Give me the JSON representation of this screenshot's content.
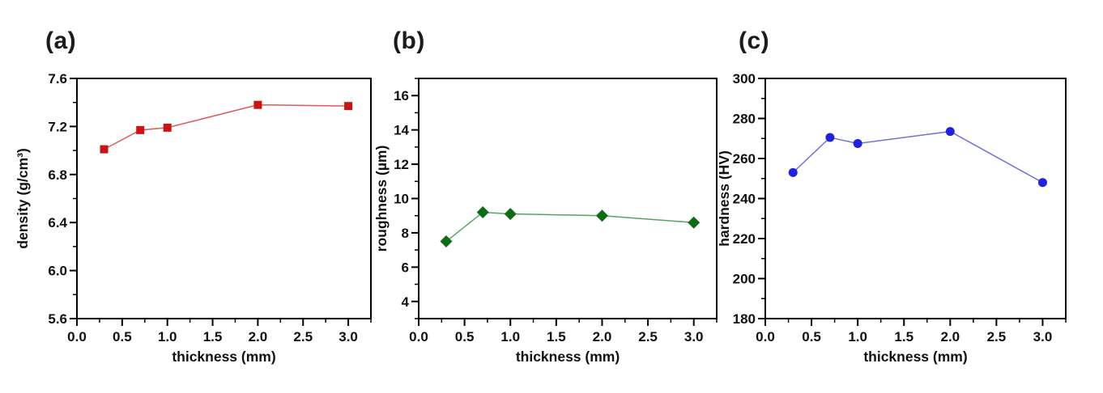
{
  "chart_data": [
    {
      "id": "a",
      "panel_label": "(a)",
      "type": "line",
      "xlabel": "thickness (mm)",
      "ylabel": "density (g/cm³)",
      "series": [
        {
          "name": "density",
          "x": [
            0.3,
            0.7,
            1.0,
            2.0,
            3.0
          ],
          "y": [
            7.01,
            7.17,
            7.19,
            7.38,
            7.37
          ]
        }
      ],
      "marker": "square",
      "marker_color": "#c81415",
      "line_color": "#e25858",
      "xlim": [
        0,
        3.25
      ],
      "ylim": [
        5.6,
        7.6
      ],
      "xtick_values": [
        0,
        0.5,
        1,
        1.5,
        2,
        2.5,
        3
      ],
      "xtick_labels": [
        "0.0",
        "0.5",
        "1.0",
        "1.5",
        "2.0",
        "2.5",
        "3.0"
      ],
      "ytick_values": [
        5.6,
        6.0,
        6.4,
        6.8,
        7.2,
        7.6
      ],
      "ytick_labels": [
        "5.6",
        "6.0",
        "6.4",
        "6.8",
        "7.2",
        "7.6"
      ],
      "x_minor_step": 0.25,
      "y_minor_step": 0.2,
      "grid": false,
      "legend": null
    },
    {
      "id": "b",
      "panel_label": "(b)",
      "type": "line",
      "xlabel": "thickness (mm)",
      "ylabel": "roughness (µm)",
      "series": [
        {
          "name": "roughness",
          "x": [
            0.3,
            0.7,
            1.0,
            2.0,
            3.0
          ],
          "y": [
            7.5,
            9.2,
            9.1,
            9.0,
            8.6
          ]
        }
      ],
      "marker": "diamond",
      "marker_color": "#0e6b16",
      "line_color": "#58a35e",
      "xlim": [
        0,
        3.25
      ],
      "ylim": [
        3,
        17
      ],
      "xtick_values": [
        0,
        0.5,
        1,
        1.5,
        2,
        2.5,
        3
      ],
      "xtick_labels": [
        "0.0",
        "0.5",
        "1.0",
        "1.5",
        "2.0",
        "2.5",
        "3.0"
      ],
      "ytick_values": [
        4,
        6,
        8,
        10,
        12,
        14,
        16
      ],
      "ytick_labels": [
        "4",
        "6",
        "8",
        "10",
        "12",
        "14",
        "16"
      ],
      "x_minor_step": 0.25,
      "y_minor_step": 1,
      "grid": false,
      "legend": null
    },
    {
      "id": "c",
      "panel_label": "(c)",
      "type": "line",
      "xlabel": "thickness (mm)",
      "ylabel": "hardness (HV)",
      "series": [
        {
          "name": "hardness",
          "x": [
            0.3,
            0.7,
            1.0,
            2.0,
            3.0
          ],
          "y": [
            253,
            270.5,
            267.5,
            273.5,
            248
          ]
        }
      ],
      "marker": "circle",
      "marker_color": "#2222dd",
      "line_color": "#7070e0",
      "xlim": [
        0,
        3.25
      ],
      "ylim": [
        180,
        300
      ],
      "xtick_values": [
        0,
        0.5,
        1,
        1.5,
        2,
        2.5,
        3
      ],
      "xtick_labels": [
        "0.0",
        "0.5",
        "1.0",
        "1.5",
        "2.0",
        "2.5",
        "3.0"
      ],
      "ytick_values": [
        180,
        200,
        220,
        240,
        260,
        280,
        300
      ],
      "ytick_labels": [
        "180",
        "200",
        "220",
        "240",
        "260",
        "280",
        "300"
      ],
      "x_minor_step": 0.25,
      "y_minor_step": 10,
      "grid": false,
      "legend": null
    }
  ]
}
